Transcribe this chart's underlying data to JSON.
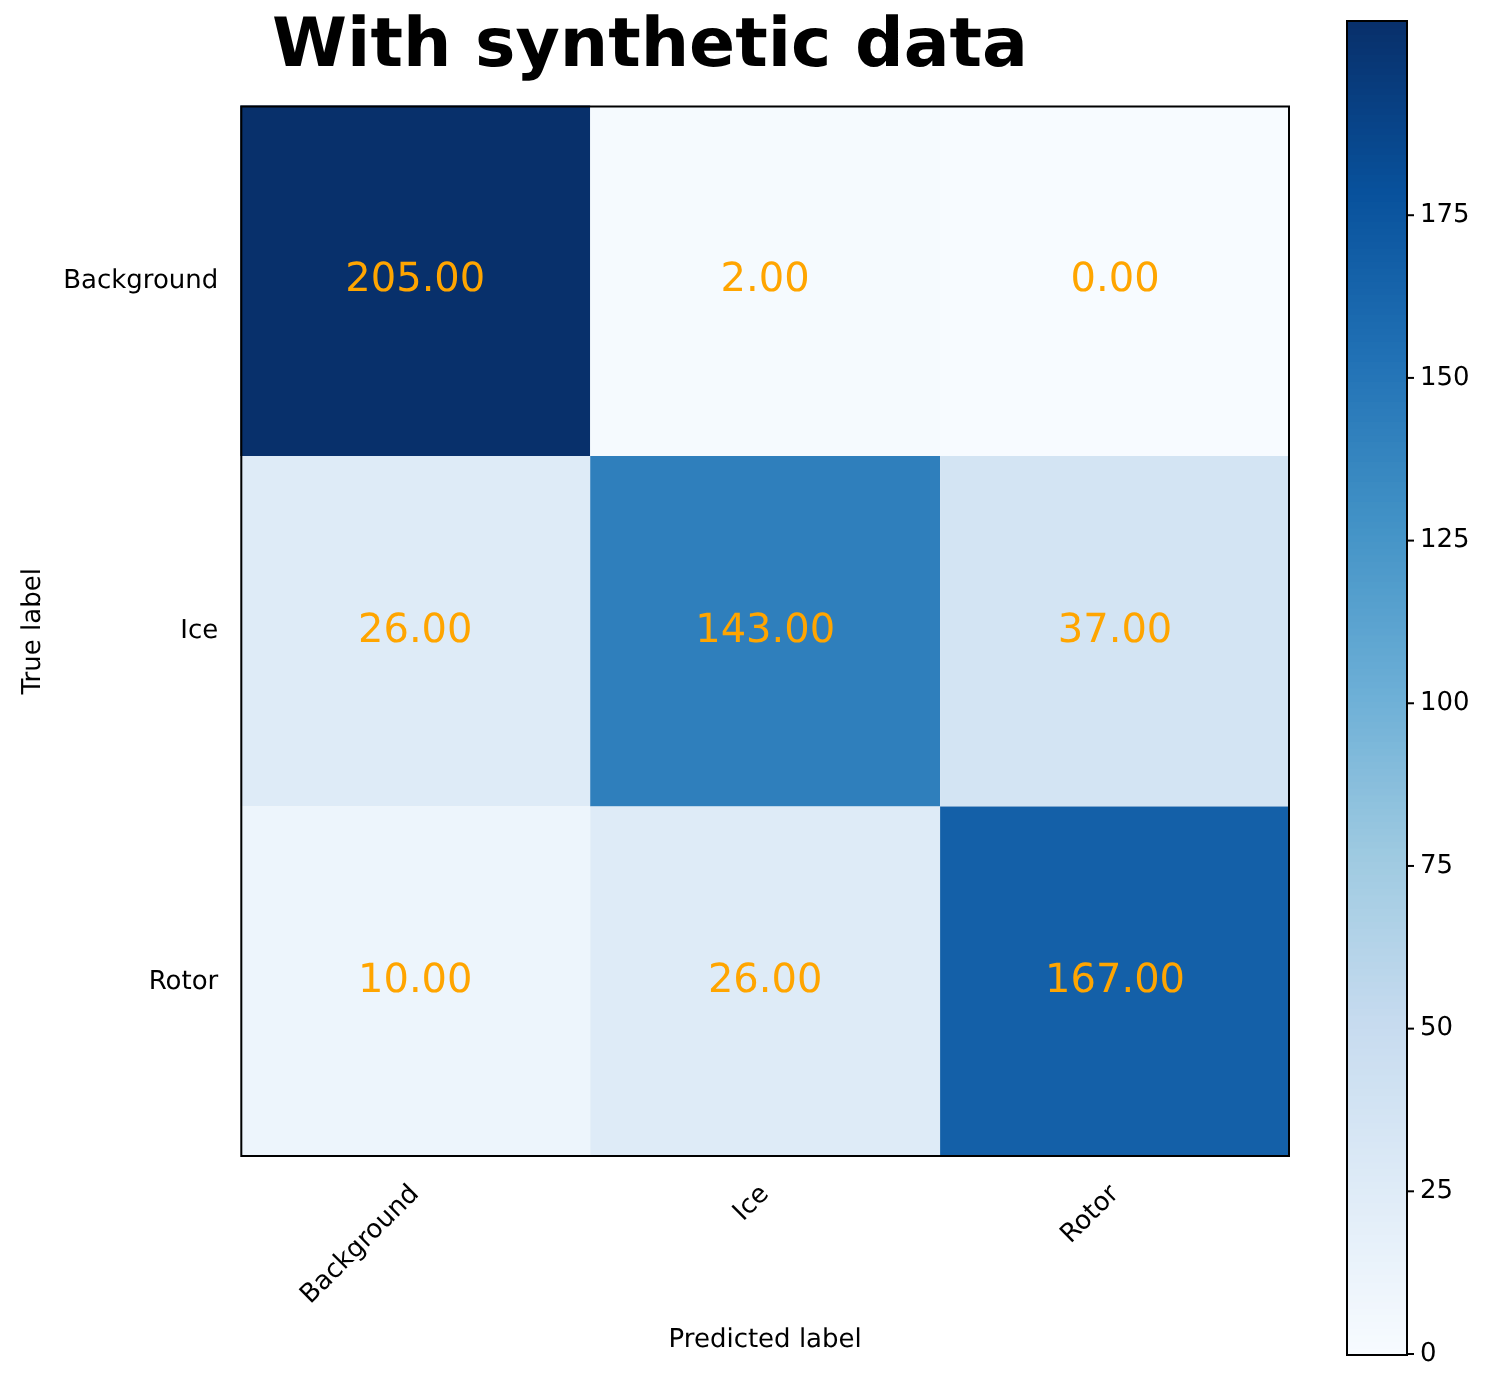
{
  "chart_data": {
    "type": "heatmap",
    "title": "With synthetic data",
    "xlabel": "Predicted label",
    "ylabel": "True label",
    "categories": [
      "Background",
      "Ice",
      "Rotor"
    ],
    "y_categories": [
      "Background",
      "Ice",
      "Rotor"
    ],
    "cells": [
      [
        205,
        2,
        0
      ],
      [
        26,
        143,
        37
      ],
      [
        10,
        26,
        167
      ]
    ],
    "cell_labels": [
      [
        "205.00",
        "2.00",
        "0.00"
      ],
      [
        "26.00",
        "143.00",
        "37.00"
      ],
      [
        "10.00",
        "26.00",
        "167.00"
      ]
    ],
    "clim": [
      0,
      205
    ],
    "cticks": [
      0,
      25,
      50,
      75,
      100,
      125,
      150,
      175
    ]
  }
}
